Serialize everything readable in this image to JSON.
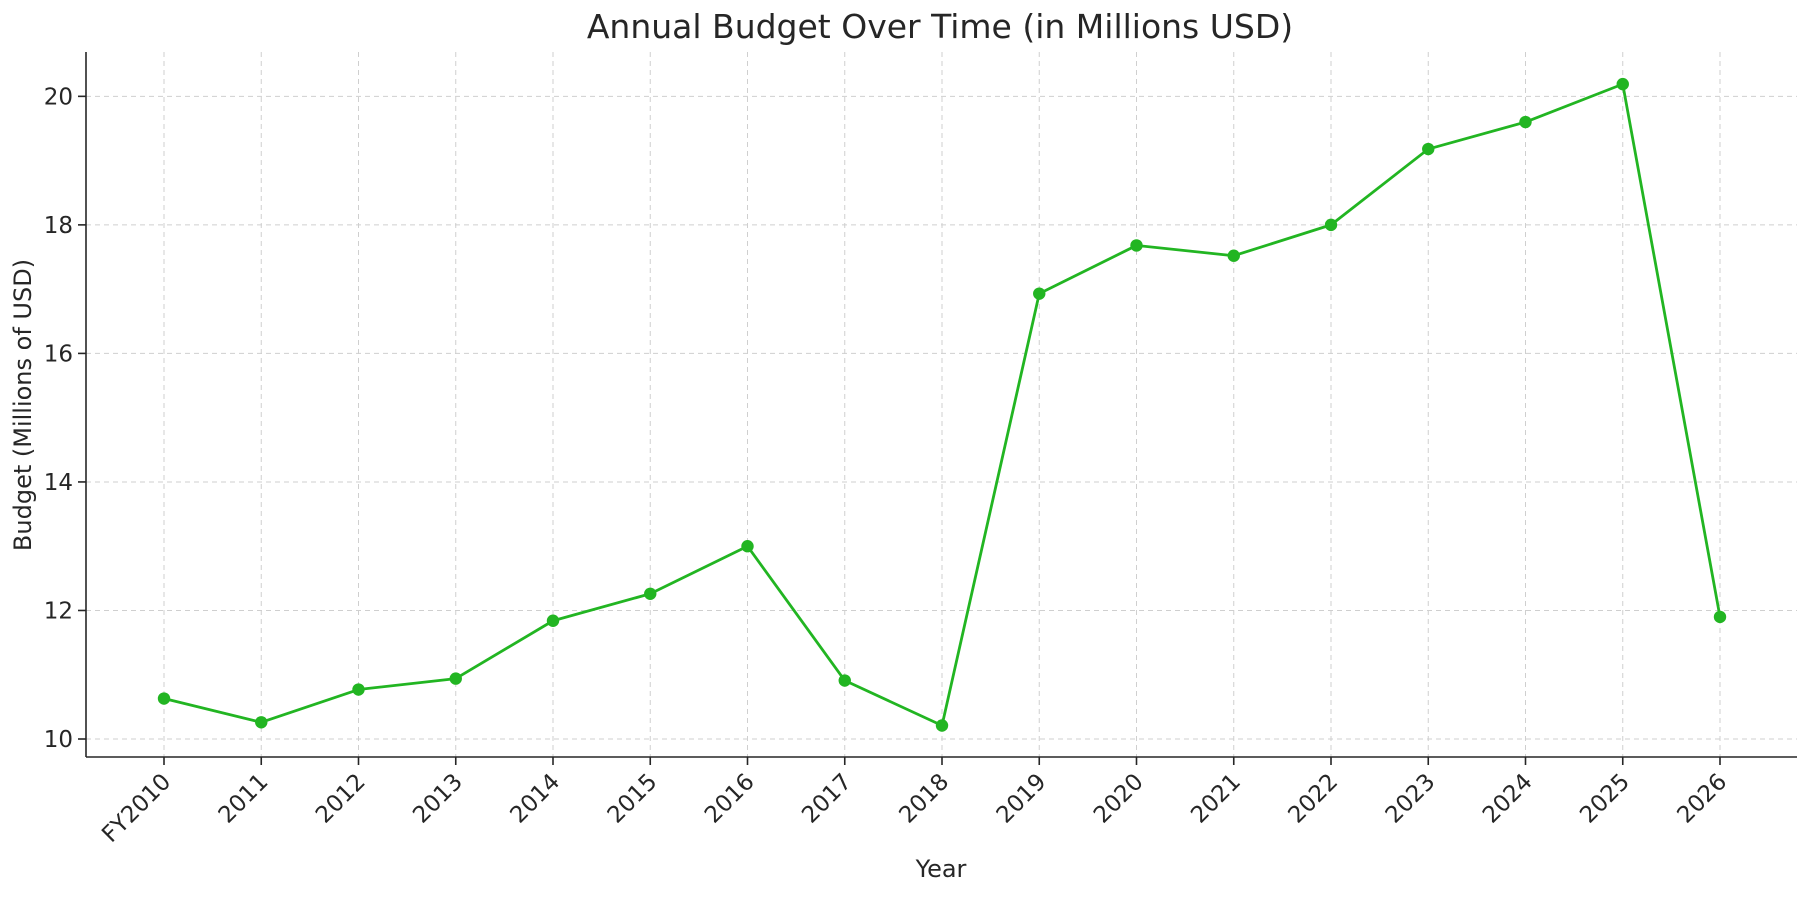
{
  "chart_data": {
    "type": "line",
    "title": "Annual Budget Over Time (in Millions USD)",
    "xlabel": "Year",
    "ylabel": "Budget (Millions of USD)",
    "categories": [
      "FY2010",
      "2011",
      "2012",
      "2013",
      "2014",
      "2015",
      "2016",
      "2017",
      "2018",
      "2019",
      "2020",
      "2021",
      "2022",
      "2023",
      "2024",
      "2025",
      "2026"
    ],
    "series": [
      {
        "values": [
          10.63,
          10.26,
          10.77,
          10.94,
          11.84,
          12.26,
          13.0,
          10.91,
          10.21,
          16.93,
          17.68,
          17.52,
          18.0,
          19.18,
          19.6,
          20.19,
          11.9
        ]
      }
    ],
    "ylim": [
      9.72,
      20.69
    ],
    "yticks": [
      10,
      12,
      14,
      16,
      18,
      20
    ],
    "grid": true,
    "line_color": "#22b522",
    "marker": "circle"
  }
}
